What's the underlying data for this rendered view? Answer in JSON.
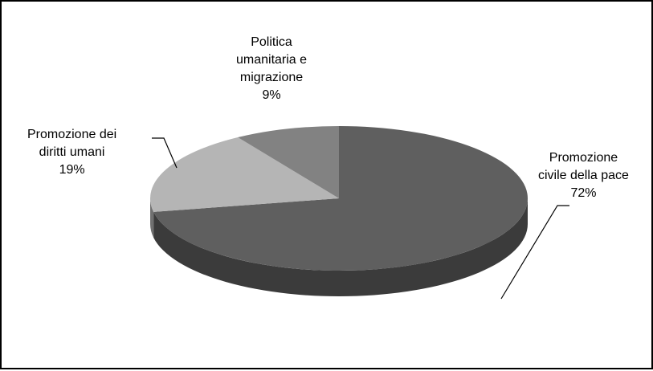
{
  "chart_data": {
    "type": "pie",
    "style": "3d",
    "slices": [
      {
        "name": "Promozione civile della pace",
        "lines": [
          "Promozione",
          "civile della pace"
        ],
        "value": 72,
        "label": "72%",
        "color": "#5f5f5f"
      },
      {
        "name": "Promozione dei diritti umani",
        "lines": [
          "Promozione dei",
          "diritti umani"
        ],
        "value": 19,
        "label": "19%",
        "color": "#b5b5b5"
      },
      {
        "name": "Politica umanitaria e migrazione",
        "lines": [
          "Politica",
          "umanitaria e",
          "migrazione"
        ],
        "value": 9,
        "label": "9%",
        "color": "#828282"
      }
    ],
    "legend": "none"
  }
}
